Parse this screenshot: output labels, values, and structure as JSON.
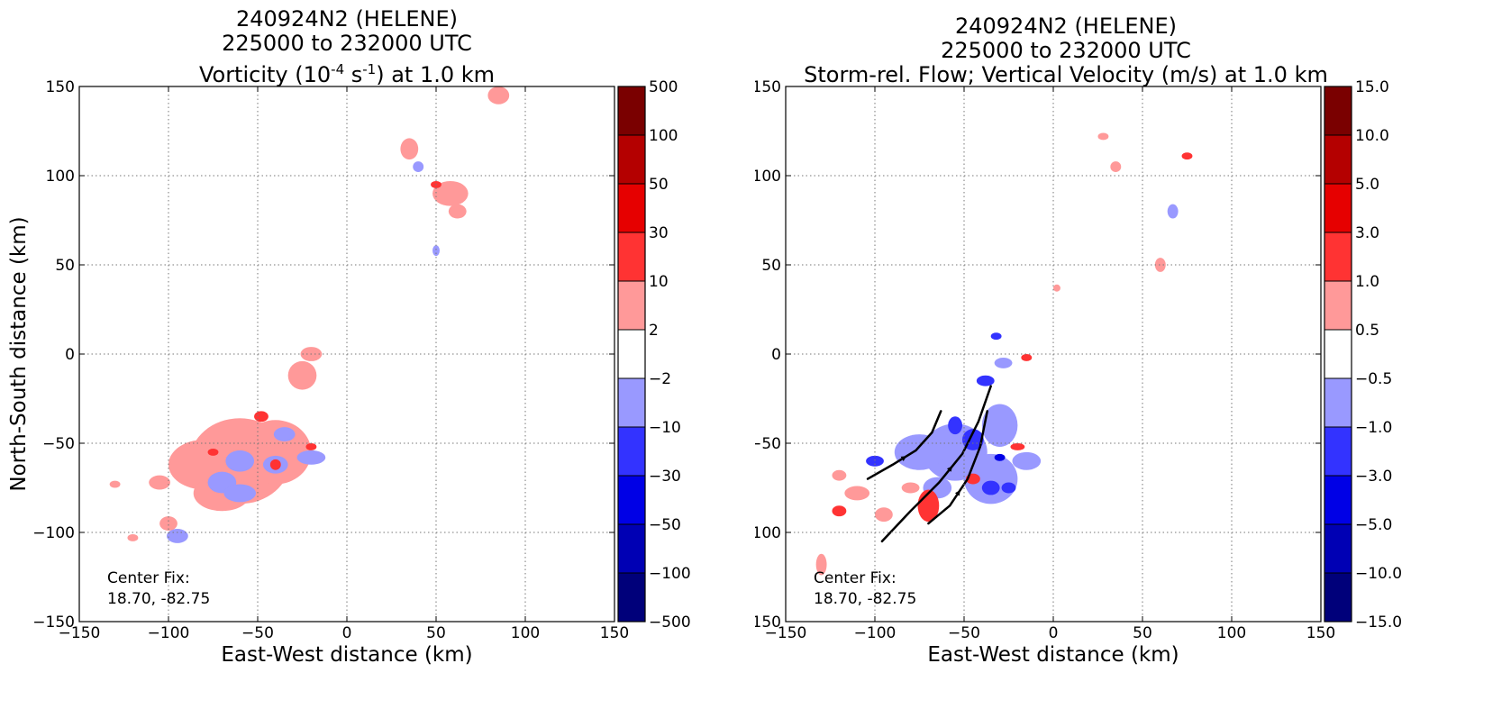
{
  "panels": [
    {
      "title_line1": "240924N2 (HELENE)",
      "title_line2": "225000 to 232000 UTC",
      "title_line3_parts": [
        "Vorticity (10",
        "-4",
        " s",
        "-1",
        ") at 1.0 km"
      ],
      "center_fix_label": "Center Fix:",
      "center_fix_value": "18.70, -82.75"
    },
    {
      "title_line1": "240924N2 (HELENE)",
      "title_line2": "225000 to 232000 UTC",
      "title_line3": "Storm-rel. Flow; Vertical Velocity (m/s) at 1.0 km",
      "center_fix_label": "Center Fix:",
      "center_fix_value": "18.70, -82.75"
    }
  ],
  "chart_data": [
    {
      "type": "heatmap",
      "title": "240924N2 (HELENE) 225000 to 232000 UTC Vorticity (10^-4 s^-1) at 1.0 km",
      "xlabel": "East-West distance (km)",
      "ylabel": "North-South distance (km)",
      "xlim": [
        -150,
        150
      ],
      "ylim": [
        -150,
        150
      ],
      "xticks": [
        "−150",
        "−100",
        "−50",
        "0",
        "50",
        "100",
        "150"
      ],
      "yticks": [
        "−150",
        "−100",
        "−50",
        "0",
        "50",
        "100",
        "150"
      ],
      "grid": true,
      "colorbar": {
        "labels": [
          "500",
          "100",
          "50",
          "30",
          "10",
          "2",
          "−2",
          "−10",
          "−30",
          "−50",
          "−100",
          "−500"
        ],
        "colors": [
          "#7a0000",
          "#b40000",
          "#e60000",
          "#ff3333",
          "#ff9999",
          "#ffffff",
          "#9999ff",
          "#3333ff",
          "#0000e6",
          "#0000b4",
          "#00007a"
        ]
      },
      "blobs": [
        {
          "x": -60,
          "y": -60,
          "rx": 28,
          "ry": 24,
          "color": "#ff9999"
        },
        {
          "x": -40,
          "y": -55,
          "rx": 20,
          "ry": 18,
          "color": "#ff9999"
        },
        {
          "x": -80,
          "y": -62,
          "rx": 20,
          "ry": 14,
          "color": "#ff9999"
        },
        {
          "x": -70,
          "y": -78,
          "rx": 16,
          "ry": 10,
          "color": "#ff9999"
        },
        {
          "x": -25,
          "y": -12,
          "rx": 8,
          "ry": 8,
          "color": "#ff9999"
        },
        {
          "x": -20,
          "y": 0,
          "rx": 6,
          "ry": 4,
          "color": "#ff9999"
        },
        {
          "x": -60,
          "y": -60,
          "rx": 8,
          "ry": 6,
          "color": "#9999ff"
        },
        {
          "x": -40,
          "y": -62,
          "rx": 7,
          "ry": 5,
          "color": "#9999ff"
        },
        {
          "x": -20,
          "y": -58,
          "rx": 8,
          "ry": 4,
          "color": "#9999ff"
        },
        {
          "x": -70,
          "y": -72,
          "rx": 8,
          "ry": 6,
          "color": "#9999ff"
        },
        {
          "x": -60,
          "y": -78,
          "rx": 9,
          "ry": 5,
          "color": "#9999ff"
        },
        {
          "x": -95,
          "y": -102,
          "rx": 6,
          "ry": 4,
          "color": "#9999ff"
        },
        {
          "x": -35,
          "y": -45,
          "rx": 6,
          "ry": 4,
          "color": "#9999ff"
        },
        {
          "x": -48,
          "y": -35,
          "rx": 4,
          "ry": 3,
          "color": "#ff3333"
        },
        {
          "x": -40,
          "y": -62,
          "rx": 3,
          "ry": 3,
          "color": "#ff3333"
        },
        {
          "x": -20,
          "y": -52,
          "rx": 3,
          "ry": 2,
          "color": "#ff3333"
        },
        {
          "x": -75,
          "y": -55,
          "rx": 3,
          "ry": 2,
          "color": "#ff3333"
        },
        {
          "x": -105,
          "y": -72,
          "rx": 6,
          "ry": 4,
          "color": "#ff9999"
        },
        {
          "x": -100,
          "y": -95,
          "rx": 5,
          "ry": 4,
          "color": "#ff9999"
        },
        {
          "x": -120,
          "y": -103,
          "rx": 3,
          "ry": 2,
          "color": "#ff9999"
        },
        {
          "x": -130,
          "y": -73,
          "rx": 3,
          "ry": 2,
          "color": "#ff9999"
        },
        {
          "x": 35,
          "y": 115,
          "rx": 5,
          "ry": 6,
          "color": "#ff9999"
        },
        {
          "x": 58,
          "y": 90,
          "rx": 10,
          "ry": 7,
          "color": "#ff9999"
        },
        {
          "x": 62,
          "y": 80,
          "rx": 5,
          "ry": 4,
          "color": "#ff9999"
        },
        {
          "x": 50,
          "y": 95,
          "rx": 3,
          "ry": 2,
          "color": "#ff3333"
        },
        {
          "x": 40,
          "y": 105,
          "rx": 3,
          "ry": 3,
          "color": "#9999ff"
        },
        {
          "x": 85,
          "y": 145,
          "rx": 6,
          "ry": 5,
          "color": "#ff9999"
        },
        {
          "x": 50,
          "y": 58,
          "rx": 2,
          "ry": 3,
          "color": "#9999ff"
        }
      ]
    },
    {
      "type": "heatmap",
      "title": "240924N2 (HELENE) 225000 to 232000 UTC Storm-rel. Flow; Vertical Velocity (m/s) at 1.0 km",
      "xlabel": "East-West distance (km)",
      "ylabel": "North-South distance (km)",
      "xlim": [
        -150,
        150
      ],
      "ylim": [
        -150,
        150
      ],
      "xticks": [
        "−150",
        "−100",
        "−50",
        "0",
        "50",
        "100",
        "150"
      ],
      "yticks": [
        "−150",
        "−100",
        "−50",
        "0",
        "50",
        "100",
        "150"
      ],
      "grid": true,
      "colorbar": {
        "labels": [
          "15.0",
          "10.0",
          "5.0",
          "3.0",
          "1.0",
          "0.5",
          "−0.5",
          "−1.0",
          "−3.0",
          "−5.0",
          "−10.0",
          "−15.0"
        ],
        "colors": [
          "#7a0000",
          "#b40000",
          "#e60000",
          "#ff3333",
          "#ff9999",
          "#ffffff",
          "#9999ff",
          "#3333ff",
          "#0000e6",
          "#0000b4",
          "#00007a"
        ]
      },
      "blobs": [
        {
          "x": -55,
          "y": -55,
          "rx": 18,
          "ry": 16,
          "color": "#9999ff"
        },
        {
          "x": -75,
          "y": -55,
          "rx": 14,
          "ry": 10,
          "color": "#9999ff"
        },
        {
          "x": -35,
          "y": -70,
          "rx": 15,
          "ry": 14,
          "color": "#9999ff"
        },
        {
          "x": -30,
          "y": -40,
          "rx": 10,
          "ry": 12,
          "color": "#9999ff"
        },
        {
          "x": -15,
          "y": -60,
          "rx": 8,
          "ry": 5,
          "color": "#9999ff"
        },
        {
          "x": -65,
          "y": -75,
          "rx": 8,
          "ry": 6,
          "color": "#9999ff"
        },
        {
          "x": -45,
          "y": -48,
          "rx": 6,
          "ry": 6,
          "color": "#3333ff"
        },
        {
          "x": -55,
          "y": -40,
          "rx": 4,
          "ry": 5,
          "color": "#3333ff"
        },
        {
          "x": -35,
          "y": -75,
          "rx": 5,
          "ry": 4,
          "color": "#3333ff"
        },
        {
          "x": -38,
          "y": -15,
          "rx": 5,
          "ry": 3,
          "color": "#3333ff"
        },
        {
          "x": -25,
          "y": -75,
          "rx": 4,
          "ry": 3,
          "color": "#3333ff"
        },
        {
          "x": -30,
          "y": -58,
          "rx": 3,
          "ry": 2,
          "color": "#0000e6"
        },
        {
          "x": -70,
          "y": -85,
          "rx": 6,
          "ry": 9,
          "color": "#ff3333"
        },
        {
          "x": -80,
          "y": -75,
          "rx": 5,
          "ry": 3,
          "color": "#ff9999"
        },
        {
          "x": -95,
          "y": -90,
          "rx": 5,
          "ry": 4,
          "color": "#ff9999"
        },
        {
          "x": -45,
          "y": -70,
          "rx": 4,
          "ry": 3,
          "color": "#ff3333"
        },
        {
          "x": -20,
          "y": -52,
          "rx": 4,
          "ry": 2,
          "color": "#ff3333"
        },
        {
          "x": -110,
          "y": -78,
          "rx": 7,
          "ry": 4,
          "color": "#ff9999"
        },
        {
          "x": -120,
          "y": -88,
          "rx": 4,
          "ry": 3,
          "color": "#ff3333"
        },
        {
          "x": -130,
          "y": -118,
          "rx": 3,
          "ry": 6,
          "color": "#ff9999"
        },
        {
          "x": -100,
          "y": -60,
          "rx": 5,
          "ry": 3,
          "color": "#3333ff"
        },
        {
          "x": -120,
          "y": -68,
          "rx": 4,
          "ry": 3,
          "color": "#ff9999"
        },
        {
          "x": -28,
          "y": -5,
          "rx": 5,
          "ry": 3,
          "color": "#9999ff"
        },
        {
          "x": -15,
          "y": -2,
          "rx": 3,
          "ry": 2,
          "color": "#ff3333"
        },
        {
          "x": -32,
          "y": 10,
          "rx": 3,
          "ry": 2,
          "color": "#3333ff"
        },
        {
          "x": 60,
          "y": 50,
          "rx": 3,
          "ry": 4,
          "color": "#ff9999"
        },
        {
          "x": 67,
          "y": 80,
          "rx": 3,
          "ry": 4,
          "color": "#9999ff"
        },
        {
          "x": 75,
          "y": 111,
          "rx": 3,
          "ry": 2,
          "color": "#ff3333"
        },
        {
          "x": 35,
          "y": 105,
          "rx": 3,
          "ry": 3,
          "color": "#ff9999"
        },
        {
          "x": 28,
          "y": 122,
          "rx": 3,
          "ry": 2,
          "color": "#ff9999"
        },
        {
          "x": 2,
          "y": 37,
          "rx": 2,
          "ry": 2,
          "color": "#ff9999"
        }
      ],
      "streamlines": [
        [
          [
            -104,
            -70
          ],
          [
            -90,
            -62
          ],
          [
            -77,
            -54
          ],
          [
            -68,
            -44
          ],
          [
            -63,
            -32
          ]
        ],
        [
          [
            -96,
            -105
          ],
          [
            -80,
            -88
          ],
          [
            -64,
            -72
          ],
          [
            -51,
            -56
          ],
          [
            -42,
            -38
          ],
          [
            -35,
            -18
          ]
        ],
        [
          [
            -70,
            -95
          ],
          [
            -58,
            -85
          ],
          [
            -48,
            -70
          ],
          [
            -41,
            -52
          ],
          [
            -37,
            -32
          ]
        ]
      ]
    }
  ]
}
